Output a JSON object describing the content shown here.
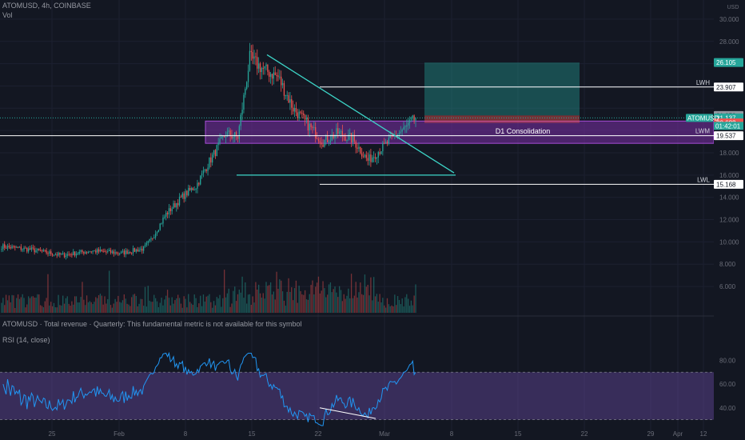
{
  "header": {
    "title": "ATOMUSD, 4h, COINBASE",
    "volume_label": "Vol",
    "fundamental_note": "ATOMUSD · Total revenue · Quarterly: This fundamental metric is not available for this symbol",
    "rsi_label": "RSI (14, close)",
    "currency": "USD"
  },
  "price_axis": {
    "ticks": [
      "30.000",
      "28.000",
      "26.105",
      "23.907",
      "21.352",
      "21.137",
      "20.682",
      "19.537",
      "18.000",
      "16.000",
      "15.168",
      "14.000",
      "12.000",
      "10.000",
      "8.000",
      "6.000"
    ],
    "rsi_ticks": [
      "80.00",
      "60.00",
      "40.00"
    ]
  },
  "time_axis": {
    "labels": [
      "25",
      "Feb",
      "8",
      "15",
      "22",
      "Mar",
      "8",
      "15",
      "22",
      "29",
      "Apr",
      "12"
    ]
  },
  "levels": [
    {
      "name": "LWH",
      "price": 23.907
    },
    {
      "name": "LWM",
      "price": 19.537
    },
    {
      "name": "LWL",
      "price": 15.168
    }
  ],
  "zones": {
    "consolidation_label": "D1 Consolidation",
    "position_target": 26.105,
    "position_entry": 21.352,
    "position_stop": 20.682
  },
  "price_tags": {
    "symbol": "ATOMUSD",
    "last_price": "21.137",
    "countdown": "01:42:01",
    "target": "26.105",
    "entry": "21.352",
    "stop": "20.682"
  },
  "colors": {
    "background": "#131722",
    "bull": "#26a69a",
    "bear": "#ef5350",
    "trendline": "#3dd6c8",
    "consolidation": "#7b2fa8",
    "rsi_line": "#2196f3",
    "rsi_band": "#7e57c2",
    "target_zone": "#26a69a",
    "stop_zone": "#ef5350"
  },
  "chart_data": {
    "type": "candlestick",
    "symbol": "ATOMUSD",
    "timeframe": "4h",
    "exchange": "COINBASE",
    "price_range": [
      5,
      31
    ],
    "rsi_range": [
      23,
      87
    ],
    "rsi_bands": [
      70,
      30
    ],
    "trend_lines": [
      {
        "name": "descending-resistance",
        "from_price": 26.8,
        "to_price": 16.2
      },
      {
        "name": "horizontal-support",
        "price": 16.0
      }
    ],
    "price_path": [
      {
        "bar": 0,
        "price": 9.6
      },
      {
        "bar": 20,
        "price": 9.3
      },
      {
        "bar": 40,
        "price": 8.8
      },
      {
        "bar": 60,
        "price": 9.2
      },
      {
        "bar": 80,
        "price": 9.0
      },
      {
        "bar": 95,
        "price": 9.4
      },
      {
        "bar": 100,
        "price": 10.2
      },
      {
        "bar": 110,
        "price": 12.5
      },
      {
        "bar": 122,
        "price": 14.2
      },
      {
        "bar": 130,
        "price": 15.0
      },
      {
        "bar": 138,
        "price": 17.0
      },
      {
        "bar": 150,
        "price": 19.7
      },
      {
        "bar": 158,
        "price": 19.4
      },
      {
        "bar": 166,
        "price": 26.5
      },
      {
        "bar": 175,
        "price": 25.5
      },
      {
        "bar": 185,
        "price": 24.8
      },
      {
        "bar": 195,
        "price": 22.0
      },
      {
        "bar": 205,
        "price": 20.5
      },
      {
        "bar": 215,
        "price": 19.0
      },
      {
        "bar": 225,
        "price": 19.8
      },
      {
        "bar": 235,
        "price": 19.2
      },
      {
        "bar": 245,
        "price": 17.3
      },
      {
        "bar": 255,
        "price": 18.5
      },
      {
        "bar": 263,
        "price": 19.5
      },
      {
        "bar": 270,
        "price": 20.2
      },
      {
        "bar": 277,
        "price": 21.1
      }
    ]
  }
}
